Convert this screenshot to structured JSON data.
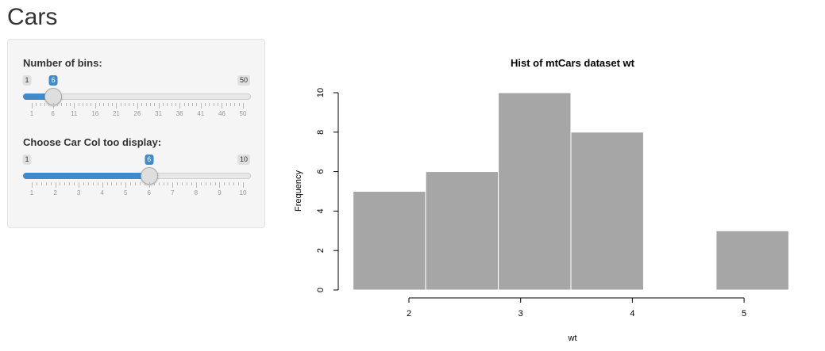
{
  "page": {
    "title": "Cars"
  },
  "controls": {
    "bins": {
      "label": "Number of bins:",
      "min": 1,
      "max": 50,
      "value": 6,
      "min_label": "1",
      "max_label": "50",
      "value_label": "6",
      "tick_labels": [
        "1",
        "6",
        "11",
        "16",
        "21",
        "26",
        "31",
        "36",
        "41",
        "46",
        "50"
      ]
    },
    "column": {
      "label": "Choose Car Col too display:",
      "min": 1,
      "max": 10,
      "value": 6,
      "min_label": "1",
      "max_label": "10",
      "value_label": "6",
      "tick_labels": [
        "1",
        "2",
        "3",
        "4",
        "5",
        "6",
        "7",
        "8",
        "9",
        "10"
      ]
    }
  },
  "chart_data": {
    "type": "bar",
    "title": "Hist of mtCars dataset wt",
    "xlabel": "wt",
    "ylabel": "Frequency",
    "bins": [
      {
        "x0": 1.5,
        "x1": 2.15,
        "count": 5
      },
      {
        "x0": 2.15,
        "x1": 2.8,
        "count": 6
      },
      {
        "x0": 2.8,
        "x1": 3.45,
        "count": 10
      },
      {
        "x0": 3.45,
        "x1": 4.1,
        "count": 8
      },
      {
        "x0": 4.1,
        "x1": 4.75,
        "count": 0
      },
      {
        "x0": 4.75,
        "x1": 5.4,
        "count": 3
      }
    ],
    "xlim": [
      1.5,
      5.4
    ],
    "ylim": [
      0,
      10
    ],
    "x_ticks": [
      2,
      3,
      4,
      5
    ],
    "y_ticks": [
      0,
      2,
      4,
      6,
      8,
      10
    ],
    "bar_color": "#a6a6a6"
  }
}
